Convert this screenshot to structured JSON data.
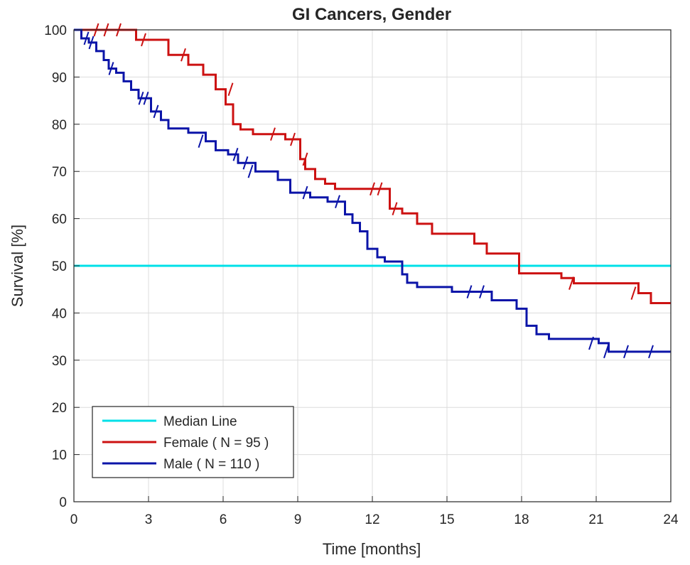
{
  "chart_data": {
    "type": "line",
    "title": "GI Cancers, Gender",
    "xlabel": "Time [months]",
    "ylabel": "Survival [%]",
    "xlim": [
      0,
      24
    ],
    "ylim": [
      0,
      100
    ],
    "xticks": [
      0,
      3,
      6,
      9,
      12,
      15,
      18,
      21,
      24
    ],
    "yticks": [
      0,
      10,
      20,
      30,
      40,
      50,
      60,
      70,
      80,
      90,
      100
    ],
    "grid": true,
    "legend_position": "bottom-left",
    "series": [
      {
        "name": "Median Line",
        "color": "#00e0e8",
        "step": false,
        "x": [
          0,
          24
        ],
        "y": [
          50,
          50
        ],
        "censored": []
      },
      {
        "name": "Female ( N = 95 )",
        "color": "#cc1111",
        "step": true,
        "x": [
          0,
          2.5,
          3.8,
          4.6,
          5.2,
          5.7,
          6.1,
          6.4,
          6.7,
          7.2,
          8.5,
          9.1,
          9.3,
          9.7,
          10.1,
          10.5,
          10.8,
          11.6,
          12.7,
          13.2,
          13.8,
          14.4,
          15.2,
          16.1,
          16.6,
          17.9,
          19.6,
          20.1,
          21.3,
          22.7,
          23.2,
          24
        ],
        "y": [
          100,
          97.9,
          94.7,
          92.6,
          90.5,
          87.4,
          84.2,
          80,
          78.9,
          77.9,
          76.8,
          72.6,
          70.5,
          68.4,
          67.4,
          66.3,
          66.3,
          66.3,
          62.1,
          61.1,
          58.9,
          56.8,
          56.8,
          54.7,
          52.6,
          48.4,
          47.4,
          46.3,
          46.3,
          44.2,
          42.1,
          42.1
        ],
        "censored": [
          [
            0.9,
            100
          ],
          [
            1.3,
            100
          ],
          [
            1.8,
            100
          ],
          [
            2.8,
            97.9
          ],
          [
            4.4,
            94.7
          ],
          [
            6.3,
            87.4
          ],
          [
            8,
            77.9
          ],
          [
            8.8,
            76.8
          ],
          [
            9.3,
            72.6
          ],
          [
            12,
            66.3
          ],
          [
            12.3,
            66.3
          ],
          [
            12.9,
            62.1
          ],
          [
            20,
            46.3
          ],
          [
            22.5,
            44.2
          ]
        ]
      },
      {
        "name": "Male ( N = 110 )",
        "color": "#0b14a8",
        "step": true,
        "x": [
          0,
          0.3,
          0.6,
          0.9,
          1.2,
          1.4,
          1.7,
          2,
          2.3,
          2.6,
          3.1,
          3.5,
          3.8,
          4.6,
          5.3,
          5.7,
          6.2,
          6.6,
          7.3,
          8.2,
          8.7,
          9.5,
          10.2,
          10.9,
          11.2,
          11.5,
          11.8,
          12.2,
          12.5,
          13.2,
          13.4,
          13.8,
          14.5,
          15.2,
          16.8,
          17.8,
          18.2,
          18.6,
          19.1,
          19.8,
          21.1,
          21.5,
          24
        ],
        "y": [
          100,
          98.2,
          97.3,
          95.5,
          93.6,
          91.8,
          90.9,
          89.1,
          87.3,
          85.5,
          82.7,
          80.9,
          79.1,
          78.2,
          76.4,
          74.5,
          73.6,
          71.8,
          70,
          68.2,
          65.5,
          64.5,
          63.6,
          60.9,
          59.1,
          57.3,
          53.6,
          51.8,
          50.9,
          48.2,
          46.4,
          45.5,
          45.5,
          44.5,
          42.7,
          40.9,
          37.3,
          35.5,
          34.5,
          34.5,
          33.6,
          31.8,
          31.8
        ],
        "censored": [
          [
            0.5,
            98.2
          ],
          [
            0.7,
            97.3
          ],
          [
            1.5,
            91.8
          ],
          [
            2.7,
            85.5
          ],
          [
            2.9,
            85.5
          ],
          [
            3.3,
            82.7
          ],
          [
            5.1,
            76.4
          ],
          [
            6.5,
            73.6
          ],
          [
            6.9,
            71.8
          ],
          [
            7.1,
            70
          ],
          [
            9.3,
            65.5
          ],
          [
            10.6,
            63.6
          ],
          [
            15.9,
            44.5
          ],
          [
            16.4,
            44.5
          ],
          [
            20.8,
            33.6
          ],
          [
            21.4,
            31.8
          ],
          [
            22.2,
            31.8
          ],
          [
            23.2,
            31.8
          ]
        ]
      }
    ]
  }
}
